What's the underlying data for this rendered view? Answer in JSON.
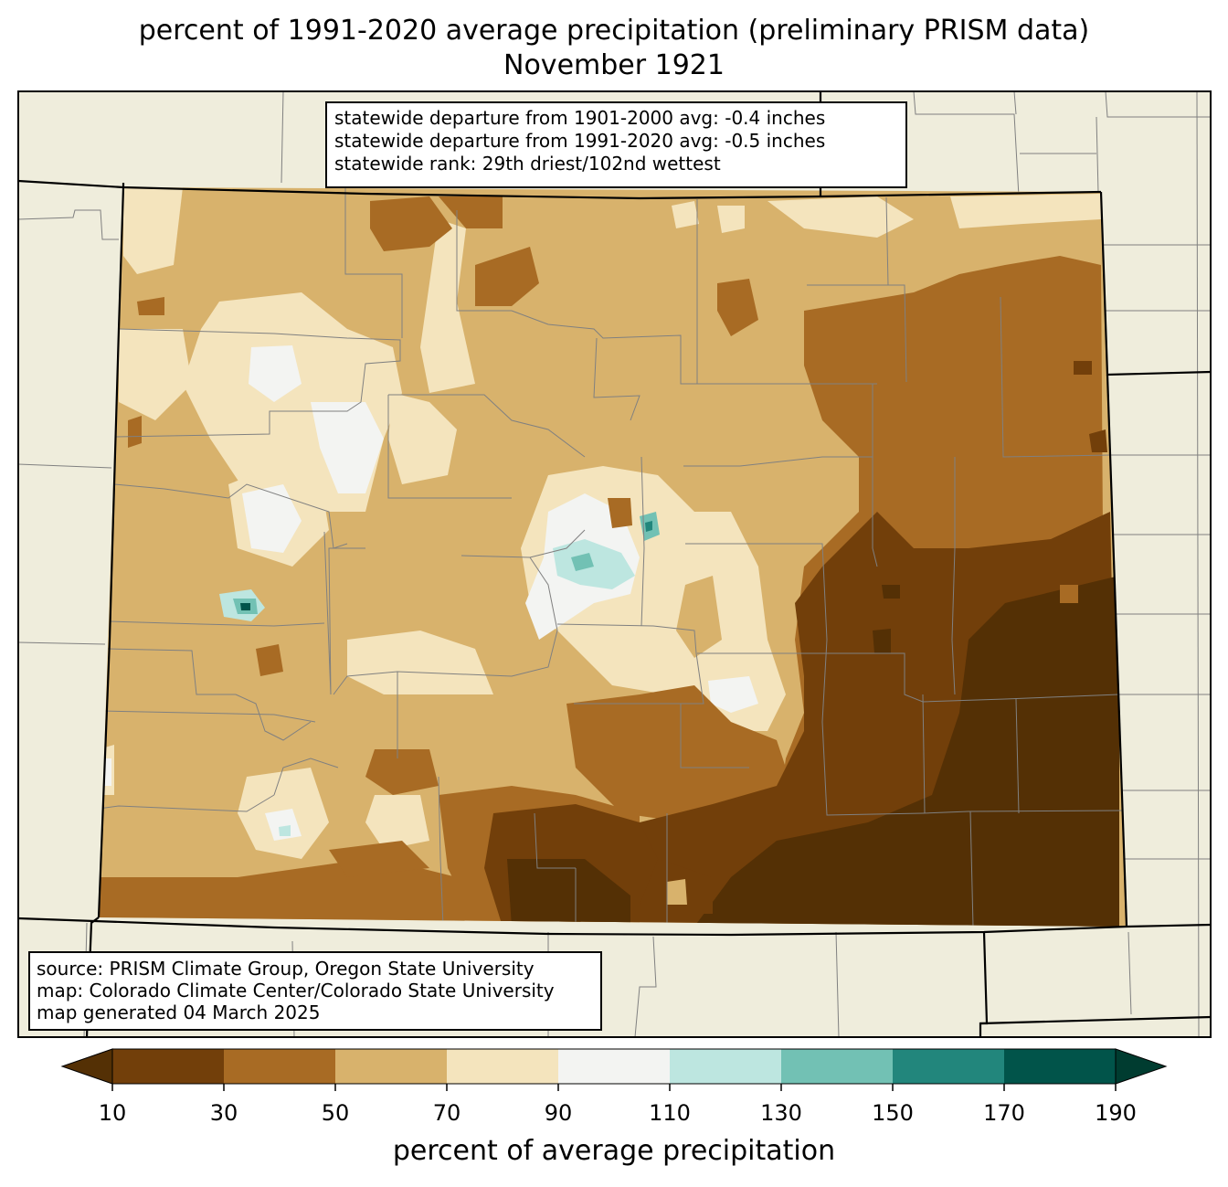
{
  "title_line1": "percent of 1991-2020 average precipitation (preliminary PRISM data)",
  "title_line2": "November 1921",
  "stats": {
    "line1": "statewide departure from 1901-2000 avg: -0.4 inches",
    "line2": "statewide departure from 1991-2020 avg: -0.5 inches",
    "line3": "statewide rank: 29th driest/102nd wettest"
  },
  "source": {
    "line1": "source: PRISM Climate Group, Oregon State University",
    "line2": "map: Colorado Climate Center/Colorado State University",
    "line3": "map generated 04 March 2025"
  },
  "colorbar": {
    "label": "percent of average precipitation",
    "ticks": [
      "10",
      "30",
      "50",
      "70",
      "90",
      "110",
      "130",
      "150",
      "170",
      "190"
    ],
    "colors": [
      "#723f0a",
      "#a86b24",
      "#d8b26c",
      "#f4e4bd",
      "#f3f4f2",
      "#bde6e0",
      "#72c1b4",
      "#22867c",
      "#01544a"
    ],
    "under_color": "#543005",
    "over_color": "#003c30"
  },
  "map_colors": {
    "background_land": "#efeddc",
    "state_border": "#000000",
    "county_border": "#808080"
  }
}
